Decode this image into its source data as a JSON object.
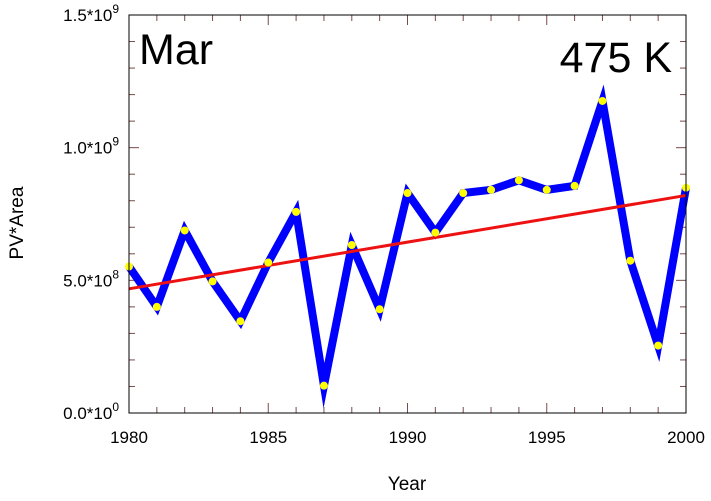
{
  "chart_data": {
    "type": "line",
    "title": "",
    "xlabel": "Year",
    "ylabel": "PV*Area",
    "xlim": [
      1980,
      2000
    ],
    "ylim": [
      0,
      1500000000
    ],
    "annotations": {
      "month": "Mar",
      "level": "475 K"
    },
    "x_ticks": [
      1980,
      1985,
      1990,
      1995,
      2000
    ],
    "x_tick_labels": [
      "1980",
      "1985",
      "1990",
      "1995",
      "2000"
    ],
    "y_ticks": [
      0,
      500000000,
      1000000000,
      1500000000
    ],
    "y_tick_labels": [
      {
        "mantissa": "0.0*10",
        "exponent": "0"
      },
      {
        "mantissa": "5.0*10",
        "exponent": "8"
      },
      {
        "mantissa": "1.0*10",
        "exponent": "9"
      },
      {
        "mantissa": "1.5*10",
        "exponent": "9"
      }
    ],
    "grid": false,
    "series": [
      {
        "color": "#0000ff",
        "marker_color": "#ffff00",
        "x": [
          1980,
          1981,
          1982,
          1983,
          1984,
          1985,
          1986,
          1987,
          1988,
          1989,
          1990,
          1991,
          1992,
          1993,
          1994,
          1995,
          1996,
          1997,
          1998,
          1999,
          2000
        ],
        "y": [
          552000000,
          400000000,
          688000000,
          496000000,
          346000000,
          567000000,
          758000000,
          103000000,
          633000000,
          391000000,
          829000000,
          680000000,
          829000000,
          841000000,
          877000000,
          841000000,
          856000000,
          1176000000,
          574000000,
          254000000,
          849000000
        ]
      },
      {
        "color": "#ee1111",
        "x": [
          1980,
          2000
        ],
        "y": [
          468000000,
          820000000
        ]
      }
    ]
  }
}
